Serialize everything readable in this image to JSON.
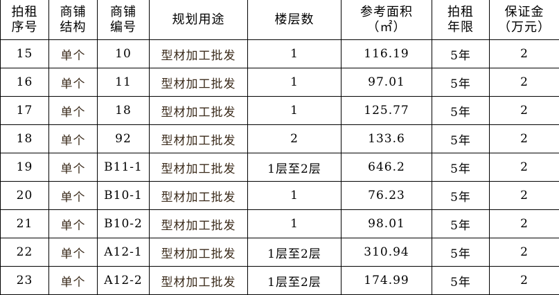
{
  "headers": [
    {
      "l1": "拍租",
      "l2": "序号"
    },
    {
      "l1": "商铺",
      "l2": "结构"
    },
    {
      "l1": "商铺",
      "l2": "编号"
    },
    {
      "l1": "规划用途",
      "l2": ""
    },
    {
      "l1": "楼层数",
      "l2": ""
    },
    {
      "l1": "参考面积",
      "l2": "（㎡）"
    },
    {
      "l1": "拍租",
      "l2": "年限"
    },
    {
      "l1": "保证金",
      "l2": "（万元）"
    }
  ],
  "rows": [
    [
      "15",
      "单个",
      "10",
      "型材加工批发",
      "1",
      "116.19",
      "5年",
      "2"
    ],
    [
      "16",
      "单个",
      "11",
      "型材加工批发",
      "1",
      "97.01",
      "5年",
      "2"
    ],
    [
      "17",
      "单个",
      "18",
      "型材加工批发",
      "1",
      "125.77",
      "5年",
      "2"
    ],
    [
      "18",
      "单个",
      "92",
      "型材加工批发",
      "2",
      "133.6",
      "5年",
      "2"
    ],
    [
      "19",
      "单个",
      "B11-1",
      "型材加工批发",
      "1层至2层",
      "646.2",
      "5年",
      "2"
    ],
    [
      "20",
      "单个",
      "B10-1",
      "型材加工批发",
      "1",
      "76.23",
      "5年",
      "2"
    ],
    [
      "21",
      "单个",
      "B10-2",
      "型材加工批发",
      "1",
      "98.01",
      "5年",
      "2"
    ],
    [
      "22",
      "单个",
      "A12-1",
      "型材加工批发",
      "1层至2层",
      "310.94",
      "5年",
      "2"
    ],
    [
      "23",
      "单个",
      "A12-2",
      "型材加工批发",
      "1层至2层",
      "174.99",
      "5年",
      "2"
    ]
  ]
}
